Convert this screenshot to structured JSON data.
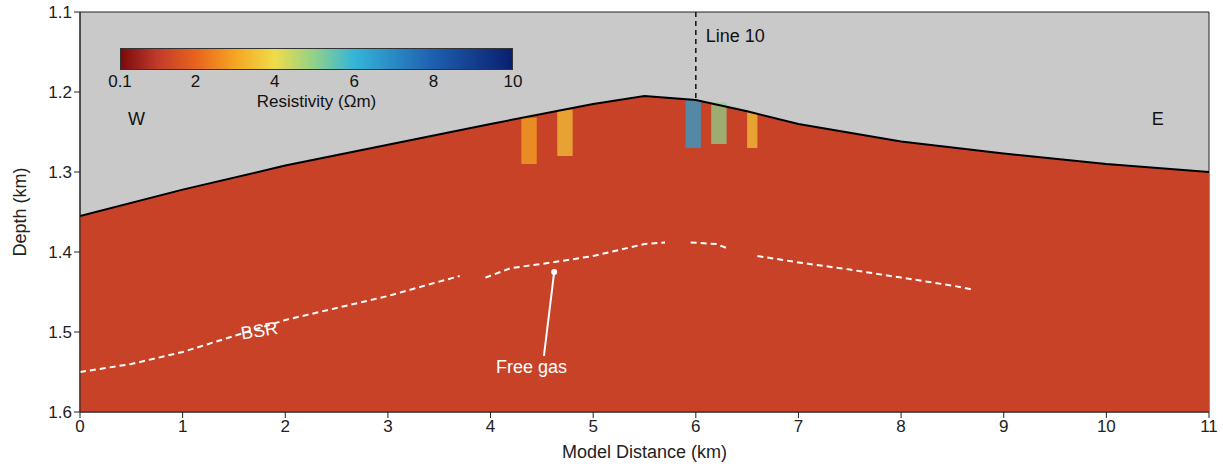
{
  "chart_data": {
    "type": "area",
    "x_label": "Model Distance (km)",
    "y_label": "Depth (km)",
    "xlim": [
      0,
      11
    ],
    "xticks": [
      0,
      1,
      2,
      3,
      4,
      5,
      6,
      7,
      8,
      9,
      10,
      11
    ],
    "ylim": [
      1.6,
      1.1
    ],
    "yticks": [
      1.1,
      1.2,
      1.3,
      1.4,
      1.5,
      1.6
    ],
    "seafloor": {
      "x": [
        0,
        1,
        2,
        3,
        4,
        5,
        5.5,
        6,
        6.5,
        7,
        8,
        9,
        10,
        11
      ],
      "depth": [
        1.355,
        1.322,
        1.292,
        1.266,
        1.24,
        1.215,
        1.205,
        1.21,
        1.224,
        1.24,
        1.262,
        1.277,
        1.29,
        1.3
      ]
    },
    "sediment_resistivity": 1.2,
    "bsr": {
      "label": "BSR",
      "x": [
        0,
        0.5,
        1,
        1.5,
        2,
        2.5,
        3,
        3.5,
        3.7,
        3.8,
        3.95,
        4.2,
        4.5,
        5,
        5.5,
        5.7,
        5.8,
        5.95,
        6.2,
        6.3,
        6.4,
        6.6,
        7,
        7.5,
        8,
        8.5,
        8.7
      ],
      "depth": [
        1.55,
        1.54,
        1.525,
        1.505,
        1.485,
        1.47,
        1.455,
        1.437,
        1.43,
        null,
        1.432,
        1.42,
        1.415,
        1.405,
        1.39,
        1.388,
        null,
        1.388,
        1.39,
        1.395,
        null,
        1.405,
        1.413,
        1.422,
        1.432,
        1.442,
        1.447
      ]
    },
    "anomalies": [
      {
        "x": [
          4.3,
          4.45
        ],
        "depth": [
          1.232,
          1.29
        ],
        "resistivity": 3
      },
      {
        "x": [
          4.65,
          4.8
        ],
        "depth": [
          1.222,
          1.28
        ],
        "resistivity": 3.5
      },
      {
        "x": [
          5.9,
          6.05
        ],
        "depth": [
          1.21,
          1.27
        ],
        "resistivity": 6.5
      },
      {
        "x": [
          6.15,
          6.3
        ],
        "depth": [
          1.213,
          1.265
        ],
        "resistivity": 5
      },
      {
        "x": [
          6.5,
          6.6
        ],
        "depth": [
          1.224,
          1.27
        ],
        "resistivity": 3.5
      }
    ],
    "line10": {
      "label": "Line 10",
      "x": 6,
      "depth": [
        1.1,
        1.21
      ]
    },
    "annotations": [
      {
        "text": "W",
        "x": 0.55,
        "y": 1.235
      },
      {
        "text": "E",
        "x": 10.5,
        "y": 1.235
      },
      {
        "text": "BSR",
        "x": 1.75,
        "y": 1.5
      },
      {
        "text": "Free gas",
        "x": 4.4,
        "y": 1.545,
        "arrow_to": [
          4.62,
          1.425
        ]
      }
    ],
    "colorbar": {
      "label": "Resistivity (Ωm)",
      "range": [
        0.1,
        10
      ],
      "ticks": [
        0.1,
        2,
        4,
        6,
        8,
        10
      ]
    }
  }
}
